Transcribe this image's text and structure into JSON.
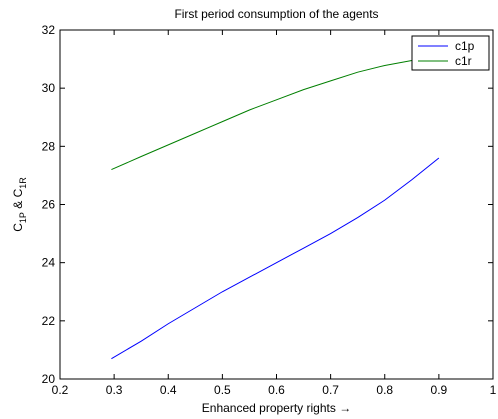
{
  "chart_data": {
    "type": "line",
    "title": "First period consumption of the agents",
    "xlabel": "Enhanced property rights →",
    "ylabel": {
      "base1": "C",
      "sub1": "1P",
      "mid": " & ",
      "base2": "C",
      "sub2": "1R"
    },
    "xlim": [
      0.2,
      1.0
    ],
    "ylim": [
      20,
      32
    ],
    "xticks": [
      0.2,
      0.3,
      0.4,
      0.5,
      0.6,
      0.7,
      0.8,
      0.9,
      1
    ],
    "xtick_labels": [
      "0.2",
      "0.3",
      "0.4",
      "0.5",
      "0.6",
      "0.7",
      "0.8",
      "0.9",
      "1"
    ],
    "yticks": [
      20,
      22,
      24,
      26,
      28,
      30,
      32
    ],
    "ytick_labels": [
      "20",
      "22",
      "24",
      "26",
      "28",
      "30",
      "32"
    ],
    "grid": false,
    "legend_position": "top-right",
    "series": [
      {
        "name": "c1p",
        "color": "#0000ff",
        "x": [
          0.295,
          0.35,
          0.4,
          0.45,
          0.5,
          0.55,
          0.6,
          0.65,
          0.7,
          0.75,
          0.8,
          0.85,
          0.9
        ],
        "y": [
          20.7,
          21.3,
          21.9,
          22.45,
          23.0,
          23.5,
          24.0,
          24.5,
          25.0,
          25.55,
          26.15,
          26.85,
          27.6
        ]
      },
      {
        "name": "c1r",
        "color": "#007f00",
        "x": [
          0.295,
          0.35,
          0.4,
          0.45,
          0.5,
          0.55,
          0.6,
          0.65,
          0.7,
          0.75,
          0.8,
          0.85,
          0.9
        ],
        "y": [
          27.2,
          27.65,
          28.05,
          28.45,
          28.85,
          29.25,
          29.6,
          29.95,
          30.25,
          30.55,
          30.78,
          30.95,
          31.05
        ]
      }
    ]
  }
}
